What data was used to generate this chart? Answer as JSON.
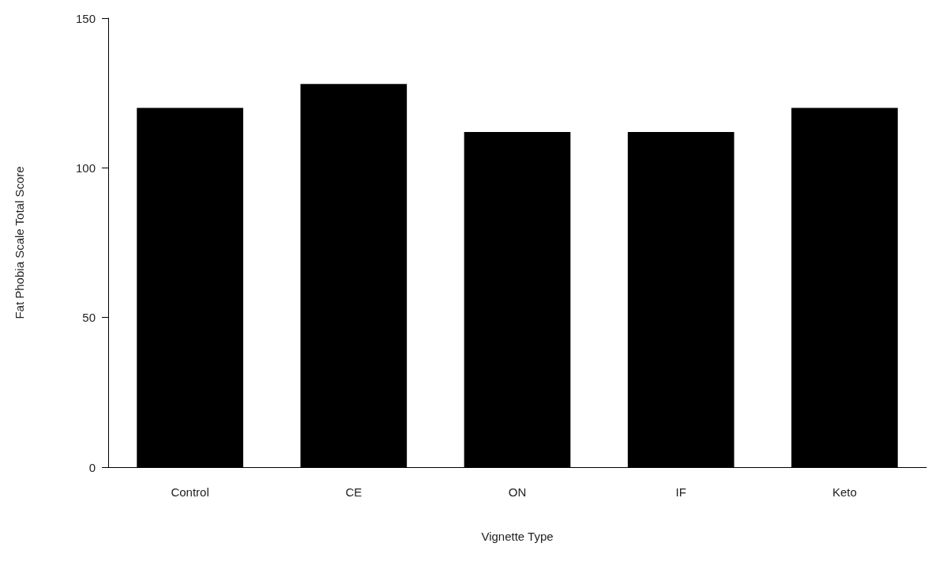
{
  "chart_data": {
    "type": "bar",
    "xlabel": "Vignette Type",
    "ylabel": "Fat Phobia Scale Total Score",
    "categories": [
      "Control",
      "CE",
      "ON",
      "IF",
      "Keto"
    ],
    "values": [
      120,
      128,
      112,
      112,
      120
    ],
    "color": "#000000",
    "ylim": [
      0,
      150
    ],
    "yticks": [
      0,
      50,
      100,
      150
    ],
    "grid": false
  }
}
